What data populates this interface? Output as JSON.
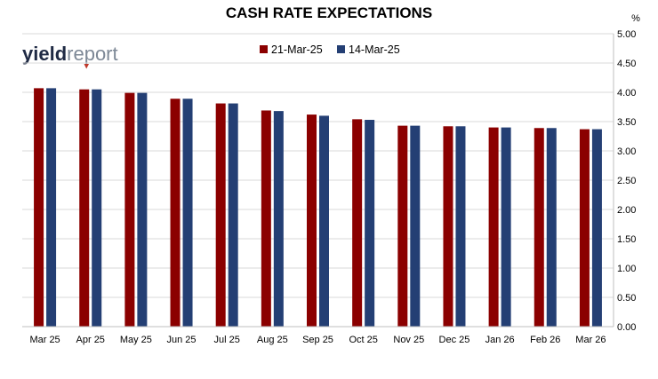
{
  "logo": {
    "part1": "yield",
    "part2": "report"
  },
  "chart_data": {
    "type": "bar",
    "title": "CASH RATE EXPECTATIONS",
    "y_unit": "%",
    "categories": [
      "Mar 25",
      "Apr 25",
      "May 25",
      "Jun 25",
      "Jul 25",
      "Aug 25",
      "Sep 25",
      "Oct 25",
      "Nov 25",
      "Dec 25",
      "Jan 26",
      "Feb 26",
      "Mar 26"
    ],
    "series": [
      {
        "name": "21-Mar-25",
        "color": "#8b0000",
        "values": [
          4.07,
          4.05,
          3.99,
          3.89,
          3.81,
          3.69,
          3.62,
          3.54,
          3.43,
          3.42,
          3.4,
          3.39,
          3.37
        ]
      },
      {
        "name": "14-Mar-25",
        "color": "#243f74",
        "values": [
          4.07,
          4.05,
          3.99,
          3.89,
          3.81,
          3.68,
          3.6,
          3.53,
          3.43,
          3.42,
          3.4,
          3.39,
          3.37
        ]
      }
    ],
    "ylim": [
      0,
      5
    ],
    "y_ticks": [
      "0.00",
      "0.50",
      "1.00",
      "1.50",
      "2.00",
      "2.50",
      "3.00",
      "3.50",
      "4.00",
      "4.50",
      "5.00"
    ],
    "y_axis_side": "right",
    "grid": true,
    "legend_position": "top-center"
  }
}
